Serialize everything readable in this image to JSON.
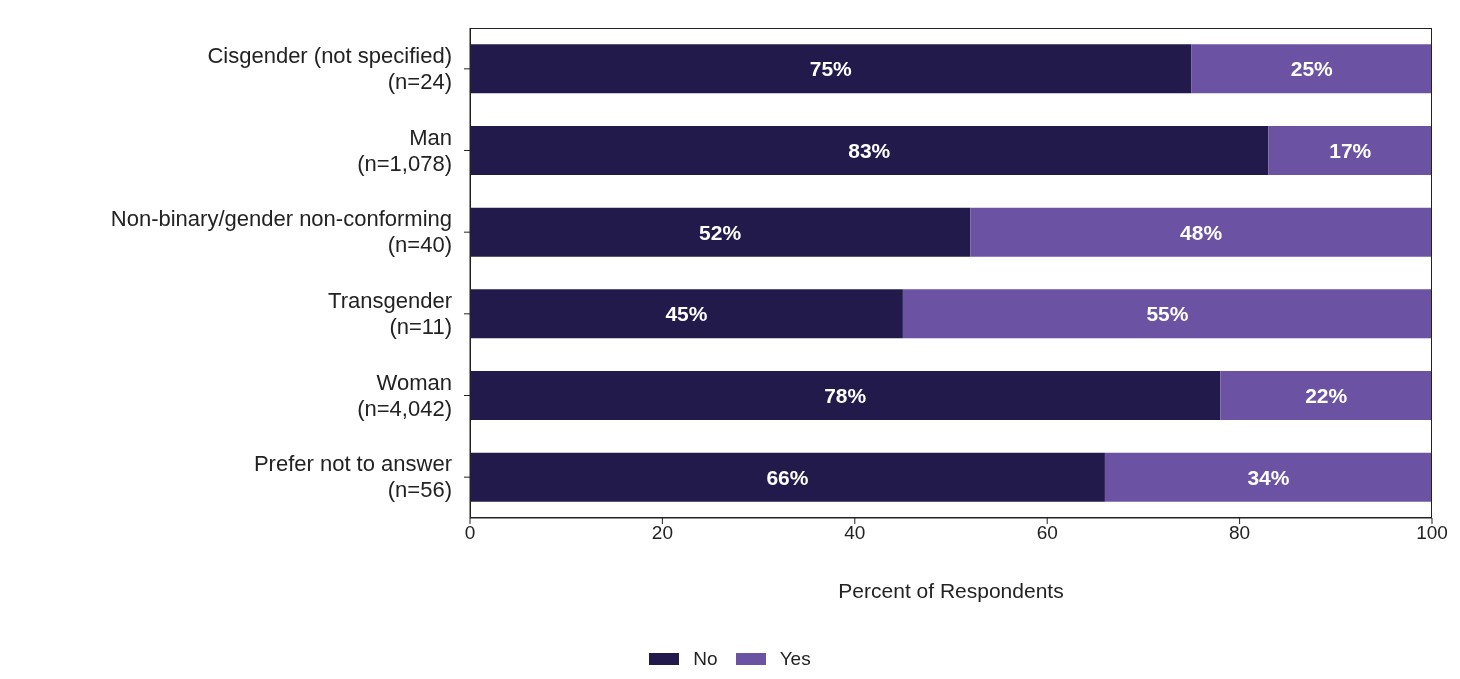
{
  "chart_data": {
    "type": "bar",
    "orientation": "horizontal",
    "stacked": true,
    "categories": [
      "Cisgender (not specified)\n(n=24)",
      "Man\n(n=1,078)",
      "Non-binary/gender non-conforming\n(n=40)",
      "Transgender\n(n=11)",
      "Woman\n(n=4,042)",
      "Prefer not to answer\n(n=56)"
    ],
    "series": [
      {
        "name": "No",
        "color": "#211a4a",
        "values": [
          75,
          83,
          52,
          45,
          78,
          66
        ],
        "value_labels": [
          "75%",
          "83%",
          "52%",
          "45%",
          "78%",
          "66%"
        ]
      },
      {
        "name": "Yes",
        "color": "#6b52a3",
        "values": [
          25,
          17,
          48,
          55,
          22,
          34
        ],
        "value_labels": [
          "25%",
          "17%",
          "48%",
          "55%",
          "22%",
          "34%"
        ]
      }
    ],
    "xlim": [
      0,
      100
    ],
    "xticks": [
      0,
      20,
      40,
      60,
      80,
      100
    ],
    "xlabel": "Percent of Respondents",
    "grid": false,
    "legend": "bottom"
  }
}
